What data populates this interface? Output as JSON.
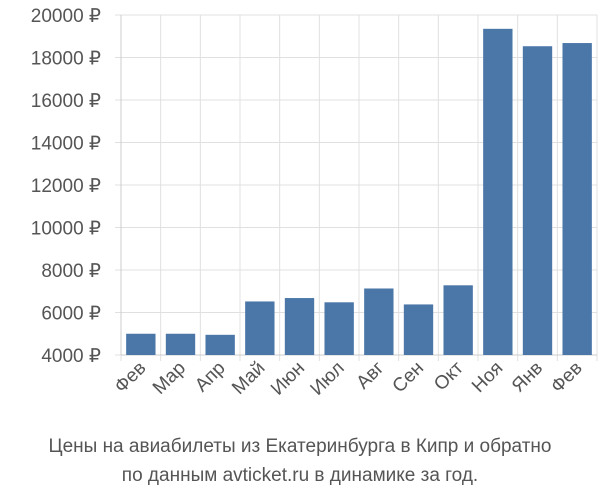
{
  "chart_data": {
    "type": "bar",
    "categories": [
      "Фев",
      "Мар",
      "Апр",
      "Май",
      "Июн",
      "Июл",
      "Авг",
      "Сен",
      "Окт",
      "Ноя",
      "Янв",
      "Фев"
    ],
    "values": [
      5000,
      5000,
      4950,
      6520,
      6680,
      6480,
      7130,
      6380,
      7280,
      19350,
      18530,
      18680
    ],
    "ylim": [
      4000,
      20000
    ],
    "yticks": [
      4000,
      6000,
      8000,
      10000,
      12000,
      14000,
      16000,
      18000,
      20000
    ],
    "ytick_labels": [
      "4000 ₽",
      "6000 ₽",
      "8000 ₽",
      "10000 ₽",
      "12000 ₽",
      "14000 ₽",
      "16000 ₽",
      "18000 ₽",
      "20000 ₽"
    ],
    "grid": true,
    "bar_color": "#4a76a8",
    "grid_color": "#e0e0e0"
  },
  "caption": {
    "line1": "Цены на авиабилеты из Екатеринбурга в Кипр и обратно",
    "line2": "по данным avticket.ru в динамике за год."
  }
}
